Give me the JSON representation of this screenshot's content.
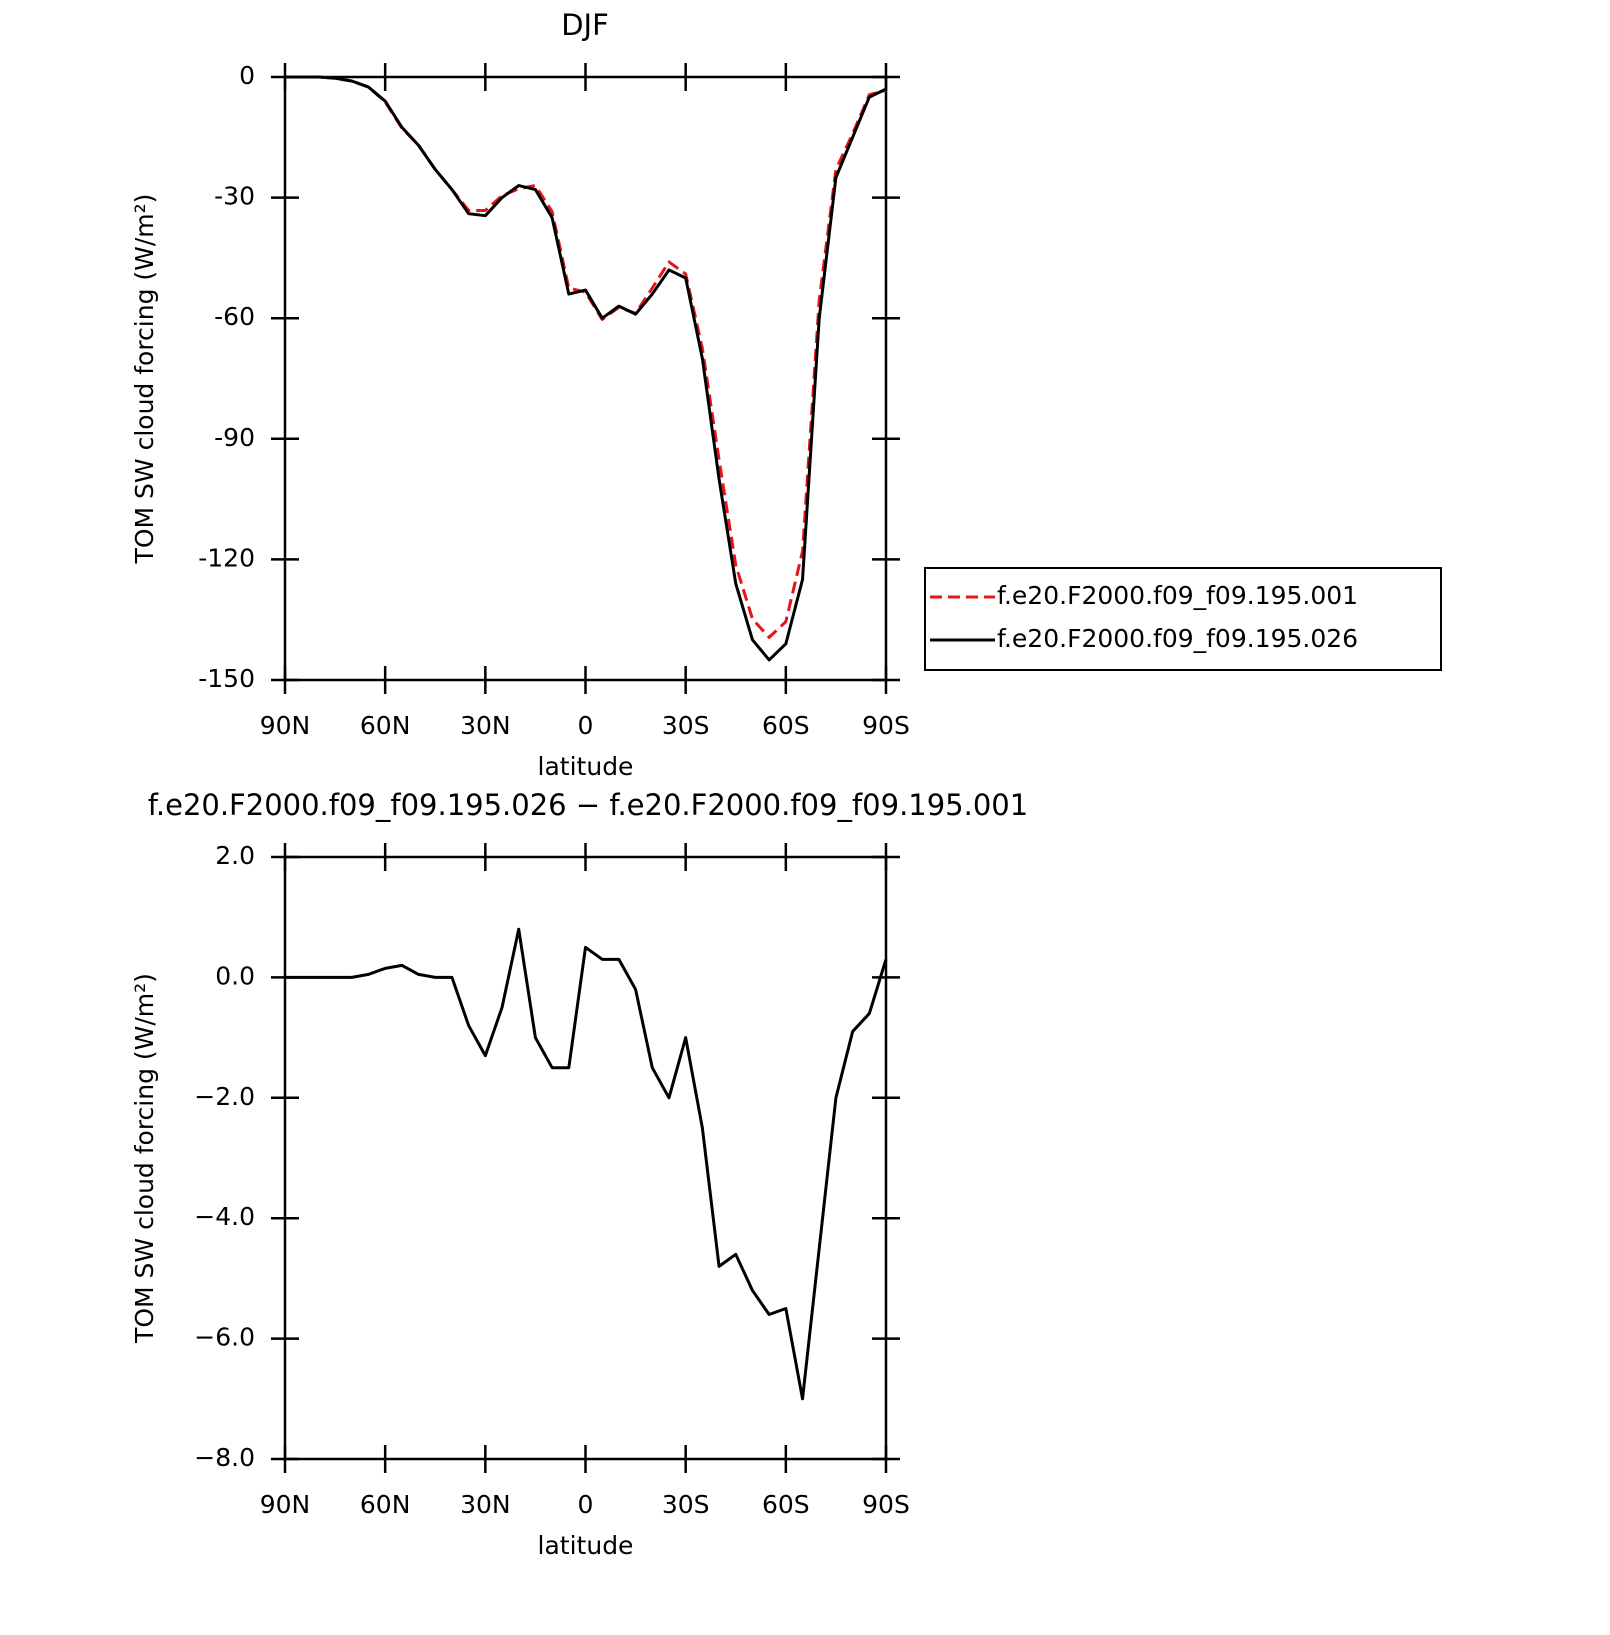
{
  "chart_data": [
    {
      "type": "line",
      "title": "DJF",
      "xlabel": "latitude",
      "ylabel": "TOM SW cloud forcing (W/m²)",
      "x": [
        90,
        85,
        80,
        75,
        70,
        65,
        60,
        55,
        50,
        45,
        40,
        35,
        30,
        25,
        20,
        15,
        10,
        5,
        0,
        -5,
        -10,
        -15,
        -20,
        -25,
        -30,
        -35,
        -40,
        -45,
        -50,
        -55,
        -60,
        -65,
        -70,
        -75,
        -80,
        -85,
        -90
      ],
      "series": [
        {
          "name": "f.e20.F2000.f09_f09.195.001",
          "color": "#e8141b",
          "dash": true,
          "values": [
            0,
            0,
            0,
            -0.3,
            -1,
            -2.5,
            -6.2,
            -12.7,
            -17,
            -23,
            -28,
            -33.2,
            -33.2,
            -29.5,
            -27.8,
            -27,
            -33.5,
            -52.5,
            -53.5,
            -60.3,
            -57.3,
            -58.8,
            -52.5,
            -46,
            -49,
            -67.5,
            -95.2,
            -121.4,
            -134.8,
            -139.4,
            -135.5,
            -118,
            -55.5,
            -23,
            -14.1,
            -4.4,
            -3.3
          ]
        },
        {
          "name": "f.e20.F2000.f09_f09.195.026",
          "color": "#000000",
          "dash": false,
          "values": [
            0,
            0,
            0,
            -0.3,
            -1,
            -2.5,
            -6,
            -12.5,
            -17,
            -23,
            -28,
            -34,
            -34.5,
            -30,
            -27,
            -28,
            -35,
            -54,
            -53,
            -60,
            -57,
            -59,
            -54,
            -48,
            -50,
            -70,
            -100,
            -126,
            -140,
            -145,
            -141,
            -125,
            -60,
            -25,
            -15,
            -5,
            -3
          ]
        }
      ],
      "xlim": [
        90,
        -90
      ],
      "xticks": [
        {
          "value": 90,
          "label": "90N"
        },
        {
          "value": 60,
          "label": "60N"
        },
        {
          "value": 30,
          "label": "30N"
        },
        0,
        {
          "value": -30,
          "label": "30S"
        },
        {
          "value": -60,
          "label": "60S"
        },
        {
          "value": -90,
          "label": "90S"
        }
      ],
      "ylim": [
        -150,
        0
      ],
      "yticks": [
        0,
        -30,
        -60,
        -90,
        -120,
        -150
      ]
    },
    {
      "type": "line",
      "title": "f.e20.F2000.f09_f09.195.026 − f.e20.F2000.f09_f09.195.001",
      "xlabel": "latitude",
      "ylabel": "TOM SW cloud forcing (W/m²)",
      "x": [
        90,
        85,
        80,
        75,
        70,
        65,
        60,
        55,
        50,
        45,
        40,
        35,
        30,
        25,
        20,
        15,
        10,
        5,
        0,
        -5,
        -10,
        -15,
        -20,
        -25,
        -30,
        -35,
        -40,
        -45,
        -50,
        -55,
        -60,
        -65,
        -70,
        -75,
        -80,
        -85,
        -90
      ],
      "series": [
        {
          "name": null,
          "color": "#000000",
          "dash": false,
          "values": [
            0,
            0,
            0,
            0,
            0,
            0.05,
            0.15,
            0.2,
            0.05,
            0,
            0,
            -0.8,
            -1.3,
            -0.5,
            0.8,
            -1,
            -1.5,
            -1.5,
            0.5,
            0.3,
            0.3,
            -0.2,
            -1.5,
            -2,
            -1,
            -2.5,
            -4.8,
            -4.6,
            -5.2,
            -5.6,
            -5.5,
            -7,
            -4.5,
            -2,
            -0.9,
            -0.6,
            0.3
          ]
        }
      ],
      "xlim": [
        90,
        -90
      ],
      "xticks": [
        {
          "value": 90,
          "label": "90N"
        },
        {
          "value": 60,
          "label": "60N"
        },
        {
          "value": 30,
          "label": "30N"
        },
        0,
        {
          "value": -30,
          "label": "30S"
        },
        {
          "value": -60,
          "label": "60S"
        },
        {
          "value": -90,
          "label": "90S"
        }
      ],
      "ylim": [
        -8,
        2
      ],
      "yticks": [
        {
          "value": 2,
          "label": "2.0"
        },
        {
          "value": 0,
          "label": "0.0"
        },
        {
          "value": -2,
          "label": "−2.0"
        },
        {
          "value": -4,
          "label": "−4.0"
        },
        {
          "value": -6,
          "label": "−6.0"
        },
        {
          "value": -8,
          "label": "−8.0"
        }
      ]
    }
  ]
}
